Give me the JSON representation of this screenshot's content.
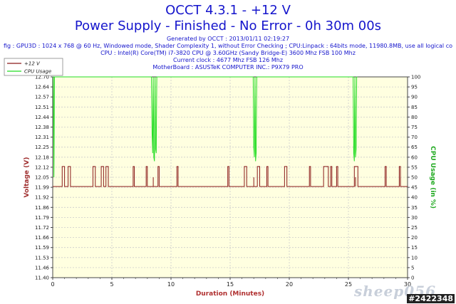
{
  "header": {
    "title": "OCCT 4.3.1 - +12 V",
    "subtitle": "Power Supply - Finished - No Error - 0h 30m 00s",
    "lines": [
      "Generated by OCCT : 2013/01/11 02:19:27",
      "fig : GPU3D : 1024 x 768 @ 60 Hz, Windowed mode, Shader Complexity 1, without Error Checking ; CPU:Linpack : 64bits mode, 11980.8MB, use all logical co",
      "CPU : Intel(R) Core(TM) i7-3820 CPU @ 3.60GHz (Sandy Bridge-E) 3600 Mhz FSB 100 Mhz",
      "Current clock : 4677 Mhz FSB 126 Mhz",
      "MotherBoard : ASUSTeK COMPUTER INC.: P9X79 PRO"
    ]
  },
  "watermark": "sheep056",
  "image_id": "#2422348",
  "colors": {
    "background": "#ffffff",
    "plot_background": "#ffffe0",
    "voltage_line": "#8b1a1a",
    "cpu_line": "#22dd22",
    "axis_label_left": "#a03030",
    "axis_label_right": "#22aa22",
    "axis_label_x": "#b03030",
    "grid": "#cccccc",
    "title": "#1515cc"
  },
  "chart_data": {
    "type": "line",
    "xlabel": "Duration (Minutes)",
    "ylabel": "Voltage (V)",
    "y2label": "CPU Usage (in %)",
    "xlim": [
      0,
      30
    ],
    "ylim": [
      11.4,
      12.7
    ],
    "y2lim": [
      0,
      100
    ],
    "xticks": [
      "0",
      "5",
      "10",
      "15",
      "20",
      "25",
      "30"
    ],
    "yticks": [
      "11.40",
      "11.46",
      "11.53",
      "11.59",
      "11.66",
      "11.72",
      "11.79",
      "11.86",
      "11.92",
      "11.99",
      "12.05",
      "12.12",
      "12.18",
      "12.25",
      "12.31",
      "12.38",
      "12.44",
      "12.51",
      "12.57",
      "12.64",
      "12.70"
    ],
    "y2ticks": [
      "0",
      "5",
      "10",
      "15",
      "20",
      "25",
      "30",
      "35",
      "40",
      "45",
      "50",
      "55",
      "60",
      "65",
      "70",
      "75",
      "80",
      "85",
      "90",
      "95",
      "100"
    ],
    "grid": true,
    "legend": {
      "placement": "top-left",
      "entries": [
        "+12 V",
        "CPU Usage"
      ]
    },
    "series": [
      {
        "name": "+12 V",
        "axis": "left",
        "base": 11.99,
        "high": 12.12,
        "mid": 12.05,
        "high_intervals": [
          [
            0.8,
            1.0
          ],
          [
            1.3,
            1.5
          ],
          [
            3.4,
            3.6
          ],
          [
            4.1,
            4.3
          ],
          [
            4.5,
            4.7
          ],
          [
            6.8,
            6.9
          ],
          [
            7.9,
            8.0
          ],
          [
            8.9,
            9.0
          ],
          [
            10.5,
            10.6
          ],
          [
            14.8,
            14.9
          ],
          [
            16.2,
            16.4
          ],
          [
            17.3,
            17.5
          ],
          [
            18.1,
            18.2
          ],
          [
            19.6,
            19.8
          ],
          [
            21.7,
            21.8
          ],
          [
            22.9,
            23.3
          ],
          [
            23.5,
            23.6
          ],
          [
            24.0,
            24.1
          ],
          [
            25.5,
            25.8
          ],
          [
            28.1,
            28.2
          ],
          [
            29.3,
            29.4
          ]
        ],
        "mid_points": [
          8.5,
          17.0,
          25.6,
          29.4
        ]
      },
      {
        "name": "CPU Usage",
        "axis": "right",
        "values": [
          [
            0.0,
            100
          ],
          [
            0.05,
            100
          ],
          [
            0.1,
            50
          ],
          [
            0.15,
            100
          ],
          [
            0.2,
            100
          ],
          [
            8.35,
            100
          ],
          [
            8.4,
            72
          ],
          [
            8.45,
            62
          ],
          [
            8.5,
            100
          ],
          [
            8.55,
            60
          ],
          [
            8.6,
            58
          ],
          [
            8.65,
            100
          ],
          [
            8.7,
            64
          ],
          [
            8.75,
            62
          ],
          [
            8.8,
            100
          ],
          [
            8.85,
            100
          ],
          [
            16.95,
            100
          ],
          [
            17.0,
            65
          ],
          [
            17.05,
            60
          ],
          [
            17.1,
            100
          ],
          [
            17.15,
            58
          ],
          [
            17.2,
            62
          ],
          [
            17.25,
            100
          ],
          [
            17.3,
            100
          ],
          [
            25.4,
            100
          ],
          [
            25.45,
            62
          ],
          [
            25.5,
            58
          ],
          [
            25.55,
            100
          ],
          [
            25.6,
            60
          ],
          [
            25.65,
            64
          ],
          [
            25.7,
            100
          ],
          [
            25.75,
            100
          ]
        ]
      }
    ]
  }
}
